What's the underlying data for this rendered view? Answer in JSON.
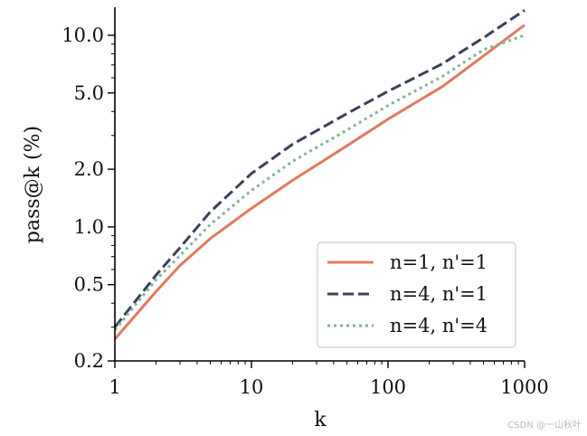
{
  "chart_data": {
    "type": "line",
    "title": "",
    "xlabel": "k",
    "ylabel": "pass@k (%)",
    "xscale": "log",
    "yscale": "log",
    "xlim": [
      1,
      1000
    ],
    "ylim": [
      0.2,
      14
    ],
    "x_ticks": [
      {
        "value": 1,
        "label": "1"
      },
      {
        "value": 10,
        "label": "10"
      },
      {
        "value": 100,
        "label": "100"
      },
      {
        "value": 1000,
        "label": "1000"
      }
    ],
    "y_ticks": [
      {
        "value": 0.2,
        "label": "0.2"
      },
      {
        "value": 0.5,
        "label": "0.5"
      },
      {
        "value": 1.0,
        "label": "1.0"
      },
      {
        "value": 2.0,
        "label": "2.0"
      },
      {
        "value": 5.0,
        "label": "5.0"
      },
      {
        "value": 10.0,
        "label": "10.0"
      }
    ],
    "grid": false,
    "legend_position": "bottom-right",
    "x": [
      1,
      2,
      3,
      5,
      10,
      20,
      50,
      100,
      250,
      500,
      1000
    ],
    "series": [
      {
        "name": "n=1, n'=1",
        "color": "#e07b62",
        "style": "solid",
        "values": [
          0.26,
          0.46,
          0.63,
          0.87,
          1.25,
          1.75,
          2.65,
          3.65,
          5.4,
          7.8,
          11.3
        ]
      },
      {
        "name": "n=4, n'=1",
        "color": "#3d405b",
        "style": "dashed",
        "values": [
          0.3,
          0.56,
          0.78,
          1.2,
          1.9,
          2.7,
          3.9,
          5.1,
          7.1,
          9.7,
          13.5
        ]
      },
      {
        "name": "n=4, n'=4",
        "color": "#81b29a",
        "style": "dotted",
        "values": [
          0.29,
          0.53,
          0.71,
          1.03,
          1.55,
          2.2,
          3.2,
          4.3,
          6.1,
          8.4,
          10.0
        ]
      }
    ]
  },
  "watermark": "CSDN @一山秋叶"
}
